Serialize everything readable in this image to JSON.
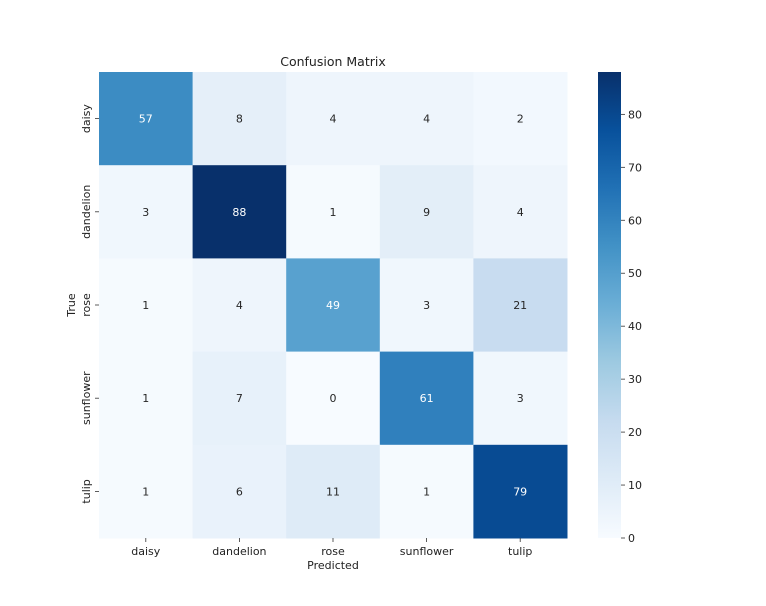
{
  "chart_data": {
    "type": "heatmap",
    "title": "Confusion Matrix",
    "xlabel": "Predicted",
    "ylabel": "True",
    "x_categories": [
      "daisy",
      "dandelion",
      "rose",
      "sunflower",
      "tulip"
    ],
    "y_categories": [
      "daisy",
      "dandelion",
      "rose",
      "sunflower",
      "tulip"
    ],
    "values": [
      [
        57,
        8,
        4,
        4,
        2
      ],
      [
        3,
        88,
        1,
        9,
        4
      ],
      [
        1,
        4,
        49,
        3,
        21
      ],
      [
        1,
        7,
        0,
        61,
        3
      ],
      [
        1,
        6,
        11,
        1,
        79
      ]
    ],
    "colormap": "Blues",
    "vmin": 0,
    "vmax": 88,
    "colorbar_ticks": [
      0,
      10,
      20,
      30,
      40,
      50,
      60,
      70,
      80
    ],
    "annotations": true,
    "grid": false
  }
}
